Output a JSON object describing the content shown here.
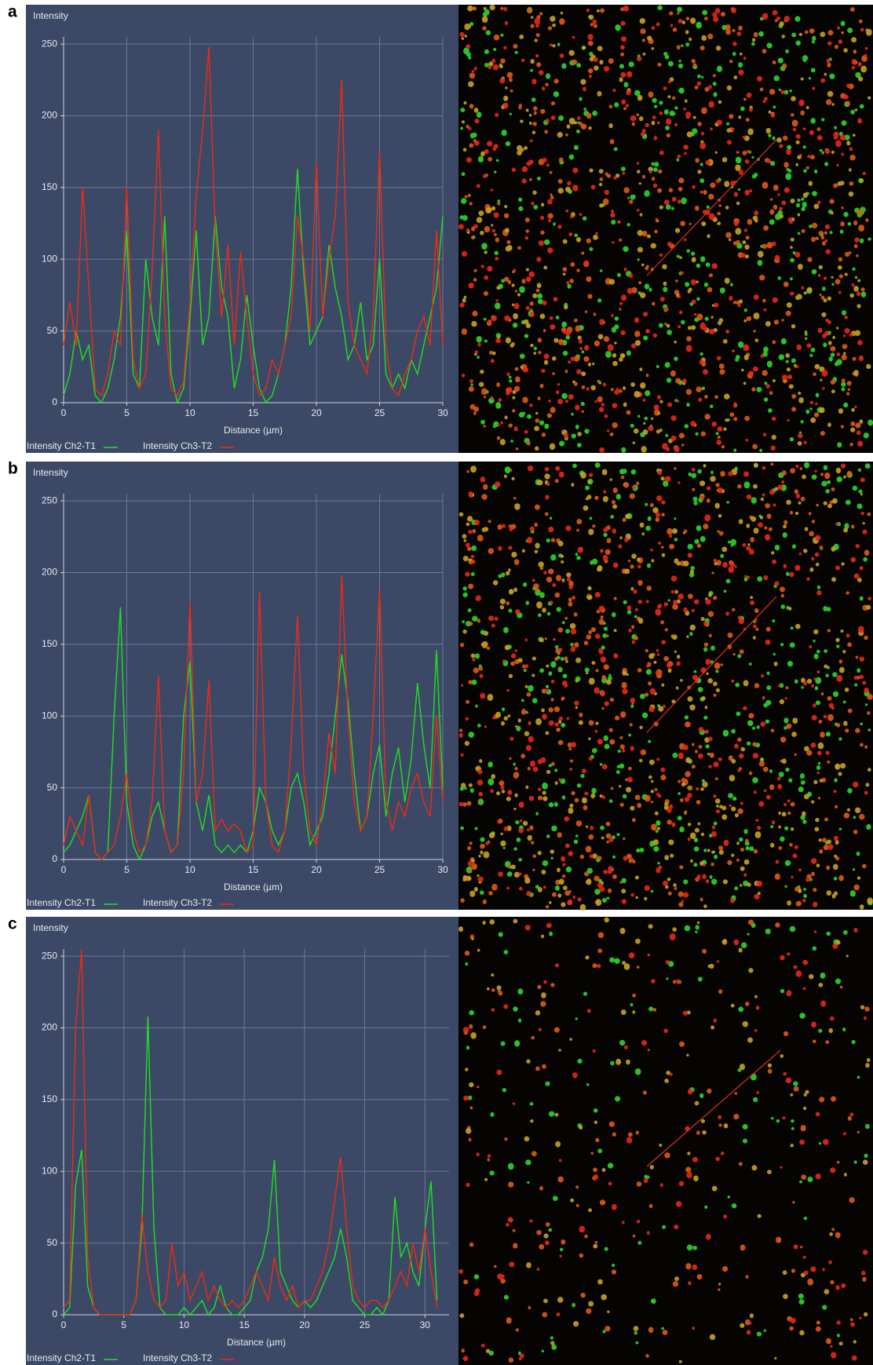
{
  "chart_data": [
    {
      "type": "line",
      "panel": "a",
      "ylabel": "Intensity",
      "xlabel": "Distance (µm)",
      "x": [
        0,
        0.5,
        1,
        1.5,
        2,
        2.5,
        3,
        3.5,
        4,
        4.5,
        5,
        5.5,
        6,
        6.5,
        7,
        7.5,
        8,
        8.5,
        9,
        9.5,
        10,
        10.5,
        11,
        11.5,
        12,
        12.5,
        13,
        13.5,
        14,
        14.5,
        15,
        15.5,
        16,
        16.5,
        17,
        17.5,
        18,
        18.5,
        19,
        19.5,
        20,
        20.5,
        21,
        21.5,
        22,
        22.5,
        23,
        23.5,
        24,
        24.5,
        25,
        25.5,
        26,
        26.5,
        27,
        27.5,
        28,
        28.5,
        29,
        29.5,
        30
      ],
      "xlim": [
        0,
        30
      ],
      "xticks": [
        0,
        5,
        10,
        15,
        20,
        25,
        30
      ],
      "ylim": [
        0,
        255
      ],
      "yticks": [
        0,
        50,
        100,
        150,
        200,
        250
      ],
      "grid": true,
      "series": [
        {
          "name": "Intensity Ch2-T1",
          "color": "#22e022",
          "values": [
            5,
            20,
            50,
            30,
            40,
            5,
            0,
            10,
            30,
            60,
            120,
            20,
            10,
            100,
            60,
            40,
            130,
            20,
            0,
            10,
            60,
            120,
            40,
            60,
            130,
            80,
            60,
            10,
            30,
            75,
            40,
            10,
            0,
            5,
            20,
            40,
            80,
            163,
            90,
            40,
            50,
            60,
            110,
            80,
            60,
            30,
            40,
            70,
            30,
            40,
            100,
            20,
            10,
            20,
            10,
            30,
            20,
            40,
            60,
            80,
            130
          ]
        },
        {
          "name": "Intensity Ch3-T2",
          "color": "#f02a14",
          "values": [
            40,
            70,
            40,
            150,
            80,
            10,
            5,
            20,
            50,
            40,
            150,
            30,
            10,
            20,
            90,
            190,
            60,
            10,
            5,
            15,
            70,
            145,
            190,
            248,
            120,
            60,
            110,
            40,
            105,
            60,
            20,
            5,
            10,
            30,
            20,
            40,
            60,
            130,
            100,
            50,
            167,
            60,
            100,
            130,
            225,
            70,
            40,
            30,
            20,
            60,
            175,
            40,
            10,
            5,
            20,
            30,
            50,
            60,
            40,
            120,
            40
          ]
        }
      ]
    },
    {
      "type": "line",
      "panel": "b",
      "ylabel": "Intensity",
      "xlabel": "Distance (µm)",
      "x": [
        0,
        0.5,
        1,
        1.5,
        2,
        2.5,
        3,
        3.5,
        4,
        4.5,
        5,
        5.5,
        6,
        6.5,
        7,
        7.5,
        8,
        8.5,
        9,
        9.5,
        10,
        10.5,
        11,
        11.5,
        12,
        12.5,
        13,
        13.5,
        14,
        14.5,
        15,
        15.5,
        16,
        16.5,
        17,
        17.5,
        18,
        18.5,
        19,
        19.5,
        20,
        20.5,
        21,
        21.5,
        22,
        22.5,
        23,
        23.5,
        24,
        24.5,
        25,
        25.5,
        26,
        26.5,
        27,
        27.5,
        28,
        28.5,
        29,
        29.5,
        30
      ],
      "xlim": [
        0,
        30
      ],
      "xticks": [
        0,
        5,
        10,
        15,
        20,
        25,
        30
      ],
      "ylim": [
        0,
        255
      ],
      "yticks": [
        0,
        50,
        100,
        150,
        200,
        250
      ],
      "grid": true,
      "series": [
        {
          "name": "Intensity Ch2-T1",
          "color": "#22e022",
          "values": [
            5,
            10,
            20,
            30,
            45,
            5,
            0,
            5,
            100,
            176,
            40,
            10,
            0,
            10,
            30,
            40,
            20,
            5,
            10,
            100,
            138,
            40,
            20,
            45,
            10,
            5,
            10,
            5,
            10,
            5,
            20,
            50,
            40,
            20,
            10,
            20,
            50,
            60,
            40,
            10,
            20,
            30,
            60,
            100,
            143,
            110,
            60,
            20,
            30,
            60,
            80,
            30,
            60,
            78,
            40,
            70,
            123,
            80,
            50,
            146,
            50
          ]
        },
        {
          "name": "Intensity Ch3-T2",
          "color": "#f02a14",
          "values": [
            10,
            30,
            20,
            10,
            45,
            5,
            0,
            5,
            10,
            30,
            60,
            20,
            5,
            10,
            40,
            128,
            20,
            5,
            10,
            60,
            180,
            40,
            60,
            125,
            20,
            28,
            20,
            25,
            20,
            5,
            10,
            187,
            40,
            10,
            5,
            20,
            80,
            170,
            60,
            20,
            10,
            40,
            88,
            60,
            198,
            100,
            40,
            20,
            30,
            100,
            188,
            40,
            20,
            40,
            30,
            50,
            60,
            40,
            30,
            100,
            40
          ]
        }
      ]
    },
    {
      "type": "line",
      "panel": "c",
      "ylabel": "Intensity",
      "xlabel": "Distance (µm)",
      "x": [
        0,
        0.5,
        1,
        1.5,
        2,
        2.5,
        3,
        3.5,
        4,
        4.5,
        5,
        5.5,
        6,
        6.5,
        7,
        7.5,
        8,
        8.5,
        9,
        9.5,
        10,
        10.5,
        11,
        11.5,
        12,
        12.5,
        13,
        13.5,
        14,
        14.5,
        15,
        15.5,
        16,
        16.5,
        17,
        17.5,
        18,
        18.5,
        19,
        19.5,
        20,
        20.5,
        21,
        21.5,
        22,
        22.5,
        23,
        23.5,
        24,
        24.5,
        25,
        25.5,
        26,
        26.5,
        27,
        27.5,
        28,
        28.5,
        29,
        29.5,
        30,
        30.5,
        31
      ],
      "xlim": [
        0,
        32
      ],
      "xticks": [
        0,
        5,
        10,
        15,
        20,
        25,
        30
      ],
      "ylim": [
        0,
        255
      ],
      "yticks": [
        0,
        50,
        100,
        150,
        200,
        250
      ],
      "grid": true,
      "series": [
        {
          "name": "Intensity Ch2-T1",
          "color": "#22e022",
          "values": [
            0,
            5,
            90,
            115,
            20,
            5,
            0,
            0,
            0,
            0,
            0,
            0,
            10,
            60,
            208,
            60,
            5,
            0,
            0,
            0,
            5,
            0,
            5,
            10,
            0,
            5,
            20,
            5,
            0,
            0,
            5,
            10,
            30,
            40,
            60,
            108,
            30,
            20,
            10,
            5,
            10,
            5,
            10,
            20,
            30,
            40,
            60,
            40,
            10,
            5,
            0,
            0,
            5,
            0,
            10,
            82,
            40,
            50,
            30,
            20,
            60,
            93,
            10
          ]
        },
        {
          "name": "Intensity Ch3-T2",
          "color": "#f02a14",
          "values": [
            5,
            10,
            200,
            255,
            40,
            5,
            0,
            0,
            0,
            0,
            0,
            0,
            10,
            70,
            30,
            10,
            5,
            10,
            50,
            20,
            30,
            10,
            20,
            30,
            10,
            20,
            10,
            5,
            10,
            5,
            10,
            20,
            30,
            20,
            10,
            40,
            20,
            10,
            20,
            5,
            10,
            10,
            20,
            30,
            50,
            80,
            110,
            60,
            20,
            10,
            5,
            10,
            10,
            5,
            10,
            20,
            30,
            20,
            50,
            30,
            60,
            30,
            5
          ]
        }
      ]
    }
  ]
}
